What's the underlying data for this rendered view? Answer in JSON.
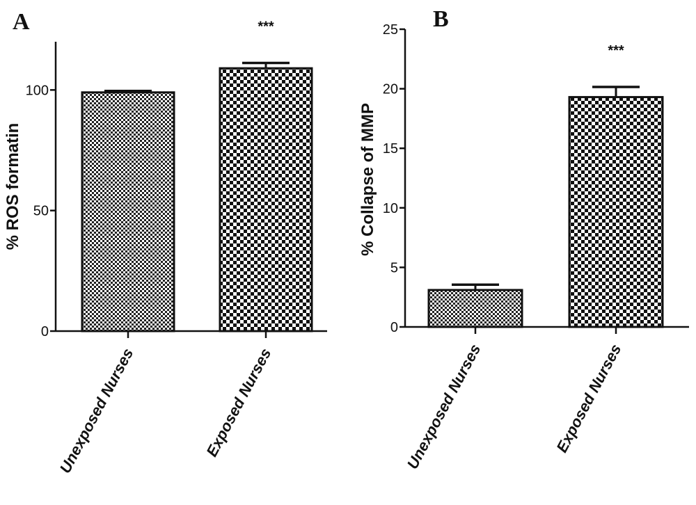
{
  "chart_data": [
    {
      "type": "bar",
      "panel": "A",
      "categories": [
        "Unexposed Nurses",
        "Exposed Nurses"
      ],
      "values": [
        99,
        109
      ],
      "errors": [
        0.6,
        2.2
      ],
      "significance": [
        "",
        "***"
      ],
      "ylabel": "% ROS formatin",
      "ylim": [
        0,
        120
      ],
      "yticks": [
        0,
        50,
        100
      ],
      "patterns": [
        "fine-checker",
        "coarse-checker"
      ],
      "grid": false
    },
    {
      "type": "bar",
      "panel": "B",
      "categories": [
        "Unexposed Nurses",
        "Exposed Nurses"
      ],
      "values": [
        3.1,
        19.3
      ],
      "errors": [
        0.45,
        0.85
      ],
      "significance": [
        "",
        "***"
      ],
      "ylabel": "% Collapse of MMP",
      "ylim": [
        0,
        25
      ],
      "yticks": [
        0,
        5,
        10,
        15,
        20,
        25
      ],
      "patterns": [
        "fine-checker",
        "coarse-checker"
      ],
      "grid": false
    }
  ],
  "colors": {
    "ink": "#111111",
    "background": "#ffffff"
  }
}
